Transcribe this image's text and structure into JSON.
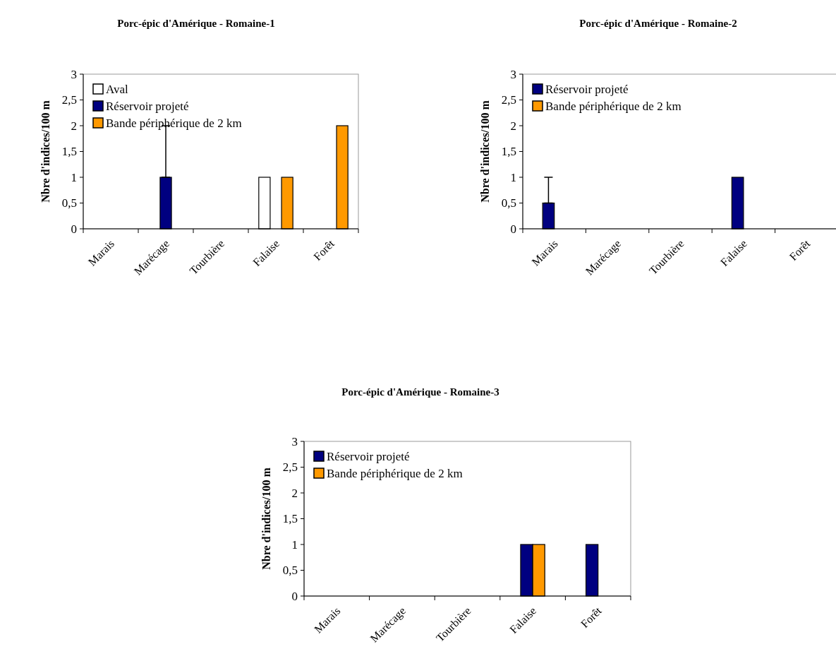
{
  "chart_data": [
    {
      "type": "bar",
      "title": "Porc-épic d'Amérique - Romaine-1",
      "ylabel": "Nbre d'indices/100 m",
      "categories": [
        "Marais",
        "Marécage",
        "Tourbière",
        "Falaise",
        "Forêt"
      ],
      "ylim": [
        0,
        3
      ],
      "yticks": [
        0,
        {
          "value": 0.5,
          "label": "0,5"
        },
        1,
        {
          "value": 1.5,
          "label": "1,5"
        },
        2,
        {
          "value": 2.5,
          "label": "2,5"
        },
        3
      ],
      "legend": "top left",
      "grid": false,
      "series": [
        {
          "name": "Aval",
          "color": "#ffffff",
          "values": [
            0,
            0,
            0,
            1,
            0
          ]
        },
        {
          "name": "Réservoir projeté",
          "color": "#000080",
          "values": [
            0,
            1,
            0,
            0,
            0
          ],
          "errors": [
            null,
            [
              1,
              2
            ],
            null,
            null,
            null
          ]
        },
        {
          "name": "Bande périphérique de 2 km",
          "color": "#ff9900",
          "values": [
            0,
            0,
            0,
            1,
            2
          ]
        }
      ]
    },
    {
      "type": "bar",
      "title": "Porc-épic d'Amérique - Romaine-2",
      "ylabel": "Nbre d'indices/100 m",
      "categories": [
        "Marais",
        "Marécage",
        "Tourbière",
        "Falaise",
        "Forêt"
      ],
      "ylim": [
        0,
        3
      ],
      "yticks": [
        0,
        {
          "value": 0.5,
          "label": "0,5"
        },
        1,
        {
          "value": 1.5,
          "label": "1,5"
        },
        2,
        {
          "value": 2.5,
          "label": "2,5"
        },
        3
      ],
      "legend": "top left",
      "grid": false,
      "series": [
        {
          "name": "Réservoir projeté",
          "color": "#000080",
          "values": [
            0.5,
            0,
            0,
            1,
            0
          ],
          "errors": [
            [
              0.5,
              1
            ],
            null,
            null,
            null,
            null
          ]
        },
        {
          "name": "Bande périphérique de 2 km",
          "color": "#ff9900",
          "values": [
            0,
            0,
            0,
            0,
            0
          ]
        }
      ]
    },
    {
      "type": "bar",
      "title": "Porc-épic d'Amérique - Romaine-3",
      "ylabel": "Nbre d'indices/100 m",
      "categories": [
        "Marais",
        "Marécage",
        "Tourbière",
        "Falaise",
        "Forêt"
      ],
      "ylim": [
        0,
        3
      ],
      "yticks": [
        0,
        {
          "value": 0.5,
          "label": "0,5"
        },
        1,
        {
          "value": 1.5,
          "label": "1,5"
        },
        2,
        {
          "value": 2.5,
          "label": "2,5"
        },
        3
      ],
      "legend": "top left",
      "grid": false,
      "series": [
        {
          "name": "Réservoir projeté",
          "color": "#000080",
          "values": [
            0,
            0,
            0,
            1,
            1
          ]
        },
        {
          "name": "Bande périphérique de 2 km",
          "color": "#ff9900",
          "values": [
            0,
            0,
            0,
            1,
            0
          ]
        }
      ]
    }
  ]
}
